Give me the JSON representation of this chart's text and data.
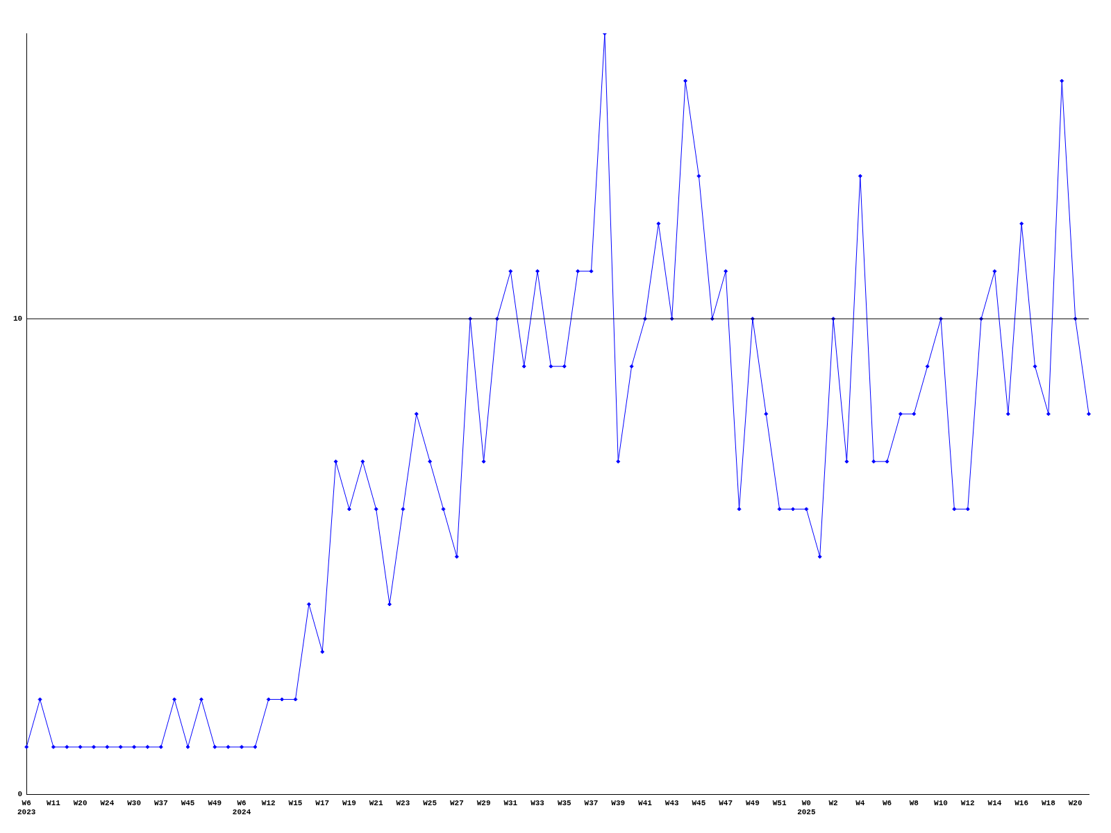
{
  "chart_data": {
    "type": "line",
    "categories": [
      "W6\n2023",
      null,
      "W11",
      null,
      "W20",
      null,
      "W24",
      null,
      "W30",
      null,
      "W37",
      null,
      "W45",
      null,
      "W49",
      null,
      "W6\n2024",
      null,
      "W12",
      null,
      "W15",
      null,
      "W17",
      null,
      "W19",
      null,
      "W21",
      null,
      "W23",
      null,
      "W25",
      null,
      "W27",
      null,
      "W29",
      null,
      "W31",
      null,
      "W33",
      null,
      "W35",
      null,
      "W37",
      null,
      "W39",
      null,
      "W41",
      null,
      "W43",
      null,
      "W45",
      null,
      "W47",
      null,
      "W49",
      null,
      "W51",
      null,
      "W0\n2025",
      null,
      "W2",
      null,
      "W4",
      null,
      "W6",
      null,
      "W8",
      null,
      "W10",
      null,
      "W12",
      null,
      "W14",
      null,
      "W16",
      null,
      "W18",
      null,
      "W20",
      null
    ],
    "series": [
      {
        "color": "#0000ff",
        "values": [
          1,
          2,
          1,
          1,
          1,
          1,
          1,
          1,
          1,
          1,
          1,
          2,
          1,
          2,
          1,
          1,
          1,
          1,
          2,
          2,
          2,
          4,
          3,
          7,
          6,
          7,
          6,
          4,
          6,
          8,
          7,
          6,
          5,
          10,
          7,
          10,
          11,
          9,
          11,
          9,
          9,
          11,
          11,
          16,
          7,
          9,
          10,
          12,
          10,
          15,
          13,
          10,
          11,
          6,
          10,
          8,
          6,
          6,
          6,
          5,
          10,
          7,
          13,
          7,
          7,
          8,
          8,
          9,
          10,
          6,
          6,
          10,
          11,
          8,
          12,
          9,
          8,
          15,
          10,
          8
        ]
      }
    ],
    "ylim": [
      0,
      16
    ],
    "yticks": [
      0,
      10
    ],
    "ref_lines": [
      {
        "axis": "y",
        "value": 10,
        "color": "#000000"
      }
    ],
    "grid": false,
    "legend": false,
    "marker": "diamond",
    "line_style": "solid"
  }
}
